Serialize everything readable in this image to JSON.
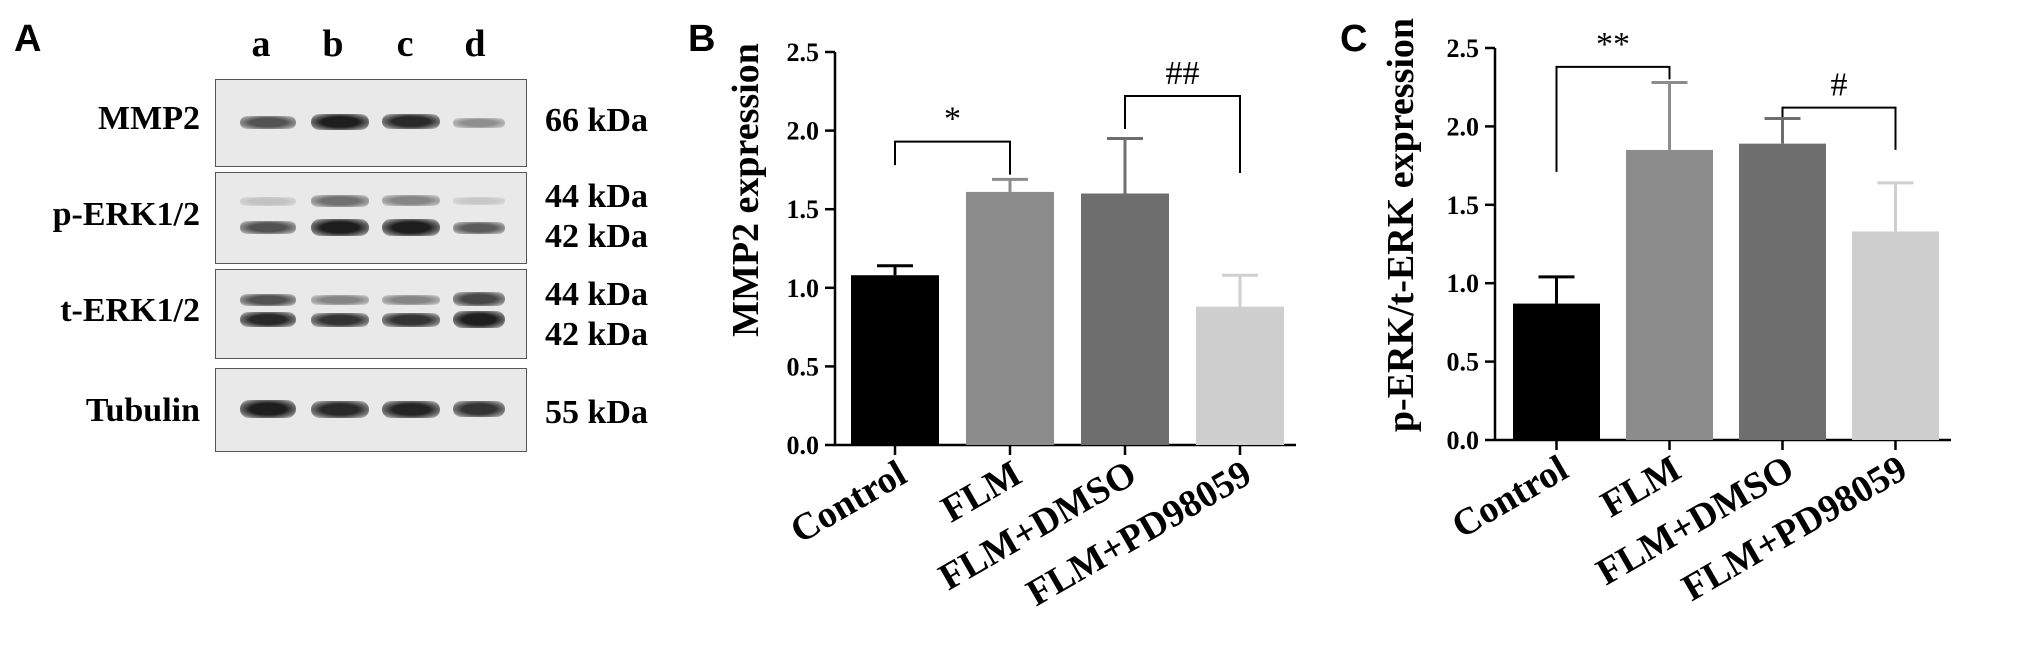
{
  "panelA": {
    "letter": "A",
    "lanes": [
      "a",
      "b",
      "c",
      "d"
    ],
    "rows": [
      {
        "label": "MMP2",
        "kda": [
          "66 kDa"
        ],
        "bands": [
          [
            {
              "intensity": 0.7
            },
            {
              "intensity": 0.95
            },
            {
              "intensity": 0.9
            },
            {
              "intensity": 0.4
            }
          ]
        ]
      },
      {
        "label": "p-ERK1/2",
        "kda": [
          "44 kDa",
          "42 kDa"
        ],
        "bands": [
          [
            {
              "intensity": 0.15
            },
            {
              "intensity": 0.55
            },
            {
              "intensity": 0.45
            },
            {
              "intensity": 0.12
            }
          ],
          [
            {
              "intensity": 0.7
            },
            {
              "intensity": 0.95
            },
            {
              "intensity": 0.95
            },
            {
              "intensity": 0.65
            }
          ]
        ]
      },
      {
        "label": "t-ERK1/2",
        "kda": [
          "44 kDa",
          "42 kDa"
        ],
        "bands": [
          [
            {
              "intensity": 0.7
            },
            {
              "intensity": 0.45
            },
            {
              "intensity": 0.45
            },
            {
              "intensity": 0.75
            }
          ],
          [
            {
              "intensity": 0.9
            },
            {
              "intensity": 0.85
            },
            {
              "intensity": 0.85
            },
            {
              "intensity": 0.95
            }
          ]
        ]
      },
      {
        "label": "Tubulin",
        "kda": [
          "55 kDa"
        ],
        "bands": [
          [
            {
              "intensity": 0.95
            },
            {
              "intensity": 0.9
            },
            {
              "intensity": 0.92
            },
            {
              "intensity": 0.85
            }
          ]
        ]
      }
    ]
  },
  "chart_data": [
    {
      "panel": "B",
      "type": "bar",
      "title": "",
      "xlabel": "",
      "ylabel": "MMP2 expression",
      "categories": [
        "Control",
        "FLM",
        "FLM+DMSO",
        "FLM+PD98059"
      ],
      "values": [
        1.08,
        1.61,
        1.6,
        0.88
      ],
      "errors": [
        0.06,
        0.08,
        0.35,
        0.2
      ],
      "colors": [
        "#000000",
        "#8c8c8c",
        "#6e6e6e",
        "#cfcfcf"
      ],
      "ylim": [
        0,
        2.5
      ],
      "yticks": [
        "0.0",
        "0.5",
        "1.0",
        "1.5",
        "2.0",
        "2.5"
      ],
      "annotations": [
        {
          "from": 0,
          "to": 1,
          "label": "*",
          "bracket_y": 1.93,
          "left_end": 1.78,
          "right_end": 1.72
        },
        {
          "from": 2,
          "to": 3,
          "label": "##",
          "bracket_y": 2.22,
          "left_end": 2.01,
          "right_end": 1.73
        }
      ]
    },
    {
      "panel": "C",
      "type": "bar",
      "title": "",
      "xlabel": "",
      "ylabel": "p-ERK/t-ERK expression",
      "categories": [
        "Control",
        "FLM",
        "FLM+DMSO",
        "FLM+PD98059"
      ],
      "values": [
        0.87,
        1.85,
        1.89,
        1.33
      ],
      "errors": [
        0.17,
        0.43,
        0.16,
        0.31
      ],
      "colors": [
        "#000000",
        "#8c8c8c",
        "#6e6e6e",
        "#cfcfcf"
      ],
      "ylim": [
        0,
        2.5
      ],
      "yticks": [
        "0.0",
        "0.5",
        "1.0",
        "1.5",
        "2.0",
        "2.5"
      ],
      "annotations": [
        {
          "from": 0,
          "to": 1,
          "label": "**",
          "bracket_y": 2.38,
          "left_end": 1.71,
          "right_end": 2.3
        },
        {
          "from": 2,
          "to": 3,
          "label": "#",
          "bracket_y": 2.12,
          "left_end": 2.06,
          "right_end": 1.85
        }
      ]
    }
  ]
}
